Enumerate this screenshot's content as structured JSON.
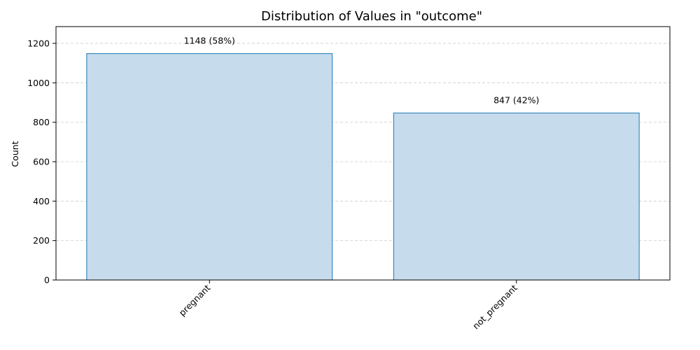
{
  "chart_data": {
    "type": "bar",
    "title": "Distribution of Values in \"outcome\"",
    "xlabel": "",
    "ylabel": "Count",
    "categories": [
      "pregnant",
      "not_pregnant"
    ],
    "values": [
      1148,
      847
    ],
    "data_labels": [
      "1148 (58%)",
      "847 (42%)"
    ],
    "ylim": [
      0,
      1285
    ],
    "yticks": [
      0,
      200,
      400,
      600,
      800,
      1000,
      1200
    ],
    "grid": "y-dashed",
    "legend": "none",
    "colors": {
      "bar_fill": "#c6dbec",
      "bar_edge": "#1f77b4",
      "grid": "#cccccc",
      "axis": "#000000"
    }
  }
}
